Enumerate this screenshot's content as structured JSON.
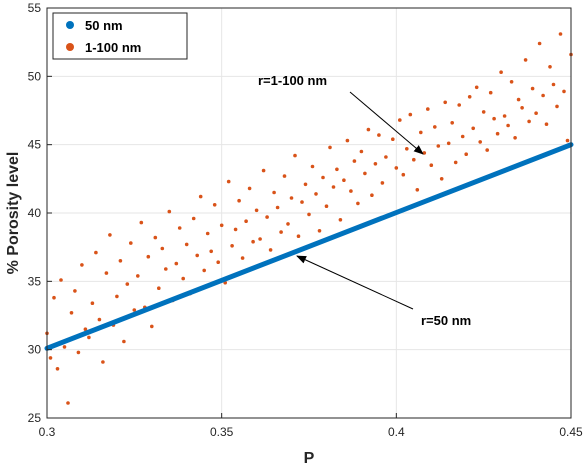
{
  "chart_data": {
    "type": "scatter",
    "xlabel": "P",
    "ylabel": "% Porosity level",
    "xlim": [
      0.3,
      0.45
    ],
    "ylim": [
      25,
      55
    ],
    "xticks": [
      0.3,
      0.35,
      0.4,
      0.45
    ],
    "xtick_labels": [
      "0.3",
      "0.35",
      "0.4",
      "0.45"
    ],
    "yticks": [
      25,
      30,
      35,
      40,
      45,
      50,
      55
    ],
    "ytick_labels": [
      "25",
      "30",
      "35",
      "40",
      "45",
      "50",
      "55"
    ],
    "grid": true,
    "legend_position": "top-left",
    "colors": {
      "line": "#0072BD",
      "scatter": "#D95319"
    },
    "series": [
      {
        "name": "50 nm",
        "kind": "line",
        "x": [
          0.3,
          0.45
        ],
        "y": [
          30.1,
          45.0
        ]
      },
      {
        "name": "1-100 nm",
        "kind": "scatter",
        "x": [
          0.3,
          0.301,
          0.302,
          0.303,
          0.304,
          0.305,
          0.306,
          0.307,
          0.308,
          0.309,
          0.31,
          0.311,
          0.312,
          0.313,
          0.314,
          0.315,
          0.316,
          0.317,
          0.318,
          0.319,
          0.32,
          0.321,
          0.322,
          0.323,
          0.324,
          0.325,
          0.326,
          0.327,
          0.328,
          0.329,
          0.33,
          0.331,
          0.332,
          0.333,
          0.334,
          0.335,
          0.336,
          0.337,
          0.338,
          0.339,
          0.34,
          0.341,
          0.342,
          0.343,
          0.344,
          0.345,
          0.346,
          0.347,
          0.348,
          0.349,
          0.35,
          0.351,
          0.352,
          0.353,
          0.354,
          0.355,
          0.356,
          0.357,
          0.358,
          0.359,
          0.36,
          0.361,
          0.362,
          0.363,
          0.364,
          0.365,
          0.366,
          0.367,
          0.368,
          0.369,
          0.37,
          0.371,
          0.372,
          0.373,
          0.374,
          0.375,
          0.376,
          0.377,
          0.378,
          0.379,
          0.38,
          0.381,
          0.382,
          0.383,
          0.384,
          0.385,
          0.386,
          0.387,
          0.388,
          0.389,
          0.39,
          0.391,
          0.392,
          0.393,
          0.394,
          0.395,
          0.396,
          0.397,
          0.398,
          0.399,
          0.4,
          0.401,
          0.402,
          0.403,
          0.404,
          0.405,
          0.406,
          0.407,
          0.408,
          0.409,
          0.41,
          0.411,
          0.412,
          0.413,
          0.414,
          0.415,
          0.416,
          0.417,
          0.418,
          0.419,
          0.42,
          0.421,
          0.422,
          0.423,
          0.424,
          0.425,
          0.426,
          0.427,
          0.428,
          0.429,
          0.43,
          0.431,
          0.432,
          0.433,
          0.434,
          0.435,
          0.436,
          0.437,
          0.438,
          0.439,
          0.44,
          0.441,
          0.442,
          0.443,
          0.444,
          0.445,
          0.446,
          0.447,
          0.448,
          0.449,
          0.45
        ],
        "y": [
          31.2,
          29.4,
          33.8,
          28.6,
          35.1,
          30.2,
          26.1,
          32.7,
          34.3,
          29.8,
          36.2,
          31.5,
          30.9,
          33.4,
          37.1,
          32.2,
          29.1,
          35.6,
          38.4,
          31.8,
          33.9,
          36.5,
          30.6,
          34.8,
          37.8,
          32.9,
          35.4,
          39.3,
          33.1,
          36.8,
          31.7,
          38.2,
          34.5,
          37.4,
          35.9,
          40.1,
          33.6,
          36.3,
          38.9,
          35.2,
          37.7,
          34.1,
          39.6,
          36.9,
          41.2,
          35.8,
          38.5,
          37.2,
          40.6,
          36.4,
          39.1,
          34.9,
          42.3,
          37.6,
          38.8,
          40.9,
          36.7,
          39.4,
          41.8,
          37.9,
          40.2,
          38.1,
          43.1,
          39.7,
          37.3,
          41.5,
          40.4,
          38.6,
          42.7,
          39.2,
          41.1,
          44.2,
          38.3,
          40.8,
          42.1,
          39.9,
          43.4,
          41.4,
          38.7,
          42.6,
          40.5,
          44.8,
          41.9,
          43.2,
          39.5,
          42.4,
          45.3,
          41.6,
          43.8,
          40.7,
          44.5,
          42.9,
          46.1,
          41.3,
          43.6,
          45.7,
          42.2,
          44.1,
          39.8,
          45.4,
          43.3,
          46.8,
          42.8,
          44.7,
          47.2,
          43.9,
          41.7,
          45.9,
          44.4,
          47.6,
          43.5,
          46.3,
          44.9,
          42.5,
          48.1,
          45.1,
          46.6,
          43.7,
          47.9,
          45.6,
          44.3,
          48.5,
          46.2,
          49.2,
          45.2,
          47.4,
          44.6,
          48.8,
          46.9,
          45.8,
          50.3,
          47.1,
          46.4,
          49.6,
          45.5,
          48.3,
          47.7,
          51.2,
          46.7,
          49.1,
          47.3,
          52.4,
          48.6,
          46.5,
          50.7,
          49.4,
          47.8,
          53.1,
          48.9,
          45.3,
          51.6
        ]
      }
    ],
    "annotations": [
      {
        "text": "r=1-100 nm",
        "x": 0.41,
        "y": 43.0
      },
      {
        "text": "r=50 nm",
        "x": 0.37,
        "y": 37.0
      }
    ]
  }
}
